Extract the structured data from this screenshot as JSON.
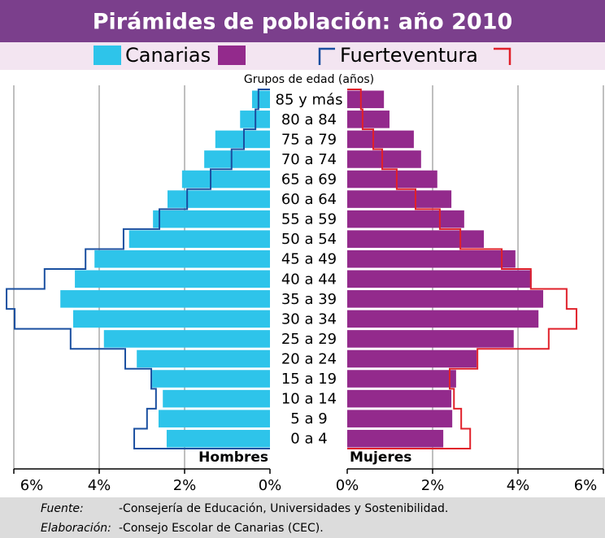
{
  "chart_data": {
    "type": "pyramid",
    "title": "Pirámides de población: año 2010",
    "y_label": "Grupos de edad (años)",
    "left_label": "Hombres",
    "right_label": "Mujeres",
    "categories": [
      "85 y más",
      "80 a 84",
      "75 a 79",
      "70 a 74",
      "65 a 69",
      "60 a 64",
      "55 a 59",
      "50 a 54",
      "45 a 49",
      "40 a 44",
      "35 a 39",
      "30 a 34",
      "25 a 29",
      "20 a 24",
      "15 a 19",
      "10 a 14",
      "5 a 9",
      "0 a 4"
    ],
    "series": [
      {
        "name": "Canarias",
        "style": "bar",
        "colors": [
          "#2ec4ea",
          "#932a8c"
        ],
        "men": [
          0.42,
          0.7,
          1.28,
          1.54,
          2.06,
          2.4,
          2.74,
          3.3,
          4.11,
          4.57,
          4.91,
          4.61,
          3.89,
          3.12,
          2.76,
          2.51,
          2.61,
          2.42
        ],
        "women": [
          0.86,
          0.99,
          1.56,
          1.73,
          2.11,
          2.44,
          2.74,
          3.2,
          3.94,
          4.32,
          4.59,
          4.48,
          3.9,
          3.03,
          2.55,
          2.44,
          2.46,
          2.25
        ]
      },
      {
        "name": "Fuerteventura",
        "style": "step",
        "colors": [
          "#1a4fa0",
          "#e0202a"
        ],
        "men": [
          0.27,
          0.34,
          0.61,
          0.9,
          1.39,
          1.94,
          2.59,
          3.43,
          4.32,
          5.28,
          6.17,
          5.98,
          4.67,
          3.39,
          2.78,
          2.67,
          2.88,
          3.18
        ],
        "women": [
          0.32,
          0.36,
          0.61,
          0.82,
          1.16,
          1.6,
          2.17,
          2.65,
          3.62,
          4.3,
          5.14,
          5.37,
          4.72,
          3.05,
          2.4,
          2.5,
          2.67,
          2.88
        ]
      }
    ],
    "xlim": [
      0,
      6
    ],
    "xticks": [
      {
        "value": 0,
        "label": "0%"
      },
      {
        "value": 2,
        "label": "2%"
      },
      {
        "value": 4,
        "label": "4%"
      },
      {
        "value": 6,
        "label": "6%"
      }
    ],
    "grid": true
  },
  "footer": {
    "source_key": "Fuente:",
    "source": "-Consejería de Educación, Universidades y Sostenibilidad.",
    "made_key": "Elaboración:",
    "made": "-Consejo Escolar de Canarias (CEC)."
  }
}
